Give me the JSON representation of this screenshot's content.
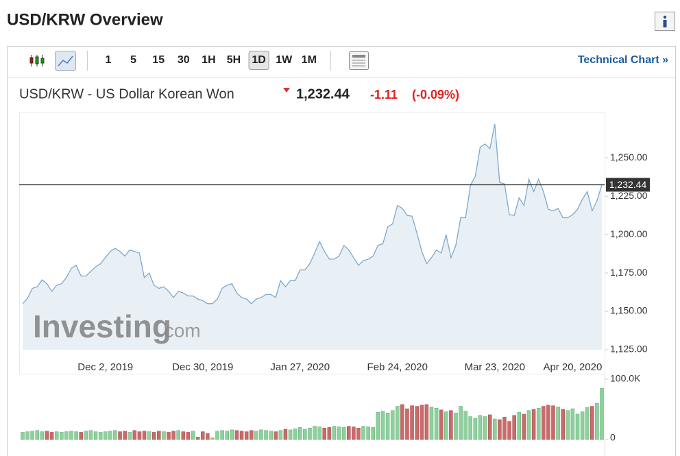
{
  "header": {
    "title": "USD/KRW Overview"
  },
  "toolbar": {
    "intervals": [
      {
        "label": "1",
        "active": false
      },
      {
        "label": "5",
        "active": false
      },
      {
        "label": "15",
        "active": false
      },
      {
        "label": "30",
        "active": false
      },
      {
        "label": "1H",
        "active": false
      },
      {
        "label": "5H",
        "active": false
      },
      {
        "label": "1D",
        "active": true
      },
      {
        "label": "1W",
        "active": false
      },
      {
        "label": "1M",
        "active": false
      }
    ],
    "link": "Technical Chart »"
  },
  "quote": {
    "name": "USD/KRW - US Dollar Korean Won",
    "price": "1,232.44",
    "change": "-1.11",
    "change_pct": "(-0.09%)"
  },
  "watermark": {
    "brand": "Investing",
    "suffix": ".com"
  },
  "chart_data": [
    {
      "type": "area",
      "color": "#7ea8cc",
      "fill": "#e4edf5",
      "categories": [
        null,
        null,
        null,
        null,
        null,
        null,
        null,
        null,
        null,
        null,
        null,
        null,
        null,
        null,
        null,
        null,
        null,
        "Dec 2, 2019",
        null,
        null,
        null,
        null,
        null,
        null,
        null,
        null,
        null,
        null,
        null,
        null,
        null,
        null,
        null,
        null,
        null,
        null,
        null,
        "Dec 30, 2019",
        null,
        null,
        null,
        null,
        null,
        null,
        null,
        null,
        null,
        null,
        null,
        null,
        null,
        null,
        null,
        null,
        null,
        null,
        null,
        "Jan 27, 2020",
        null,
        null,
        null,
        null,
        null,
        null,
        null,
        null,
        null,
        null,
        null,
        null,
        null,
        null,
        null,
        null,
        null,
        null,
        null,
        "Feb 24, 2020",
        null,
        null,
        null,
        null,
        null,
        null,
        null,
        null,
        null,
        null,
        null,
        null,
        null,
        null,
        null,
        null,
        null,
        null,
        null,
        "Mar 23, 2020",
        null,
        null,
        null,
        null,
        null,
        null,
        null,
        null,
        null,
        null,
        null,
        null,
        null,
        null,
        null,
        "Apr 20, 2020",
        null,
        null,
        null,
        null,
        null,
        null
      ],
      "values": [
        1155,
        1158.5,
        1165,
        1166,
        1170.5,
        1168,
        1163,
        1167,
        1168,
        1172,
        1178,
        1180,
        1173,
        1173,
        1176,
        1179,
        1181,
        1185,
        1189,
        1191,
        1189,
        1186,
        1190,
        1189,
        1188,
        1172,
        1175,
        1167,
        1165,
        1166,
        1163,
        1159,
        1163,
        1162,
        1160,
        1160,
        1158,
        1157,
        1155,
        1155,
        1158,
        1165,
        1167,
        1168,
        1162,
        1159,
        1158,
        1155,
        1158,
        1159,
        1161,
        1161,
        1159,
        1170,
        1166,
        1170,
        1170,
        1177,
        1177,
        1181,
        1188,
        1195.5,
        1189,
        1184,
        1184,
        1186,
        1193,
        1190,
        1185,
        1180,
        1183,
        1184,
        1186,
        1193,
        1194,
        1205,
        1207,
        1219,
        1217,
        1212.5,
        1212,
        1201,
        1189,
        1181,
        1185,
        1190,
        1188,
        1200,
        1185,
        1193,
        1211,
        1211,
        1232,
        1238,
        1257,
        1259,
        1256,
        1272,
        1234,
        1233,
        1213,
        1212.5,
        1224,
        1219,
        1236,
        1228,
        1236,
        1228,
        1216.5,
        1215.5,
        1217,
        1211,
        1211,
        1213,
        1216.5,
        1223,
        1228,
        1215.5,
        1222,
        1232.44
      ],
      "ylim": [
        1125,
        1280
      ],
      "yticks": [
        {
          "value": 1125,
          "label": "1,125.00"
        },
        {
          "value": 1150,
          "label": "1,150.00"
        },
        {
          "value": 1175,
          "label": "1,175.00"
        },
        {
          "value": 1200,
          "label": "1,200.00"
        },
        {
          "value": 1225,
          "label": "1,225.00"
        },
        {
          "value": 1250,
          "label": "1,250.00"
        }
      ],
      "last_value": {
        "value": 1232.44,
        "label": "1,232.44"
      }
    },
    {
      "type": "bar",
      "up_color": "#8fd19e",
      "down_color": "#c96b6b",
      "values": [
        12000,
        13000,
        14000,
        15000,
        13000,
        14000,
        12000,
        13000,
        12000,
        13000,
        14000,
        13000,
        12000,
        14000,
        15000,
        13000,
        12000,
        13000,
        14000,
        15000,
        13000,
        14000,
        12000,
        15000,
        13000,
        14000,
        13000,
        12000,
        14000,
        13000,
        12000,
        14000,
        15000,
        13000,
        12000,
        14000,
        4000,
        13000,
        10000,
        3000,
        14000,
        15000,
        14000,
        16000,
        15000,
        14000,
        13000,
        15000,
        14000,
        16000,
        15000,
        14000,
        13000,
        15000,
        17000,
        16000,
        18000,
        20000,
        17000,
        19000,
        22000,
        21000,
        19000,
        20000,
        22000,
        21000,
        20000,
        22000,
        21000,
        19000,
        22000,
        21000,
        20000,
        45000,
        47000,
        44000,
        48000,
        55000,
        58000,
        51000,
        56000,
        55000,
        57000,
        58000,
        54000,
        52000,
        49000,
        46000,
        48000,
        44000,
        55000,
        47000,
        38000,
        35000,
        40000,
        38000,
        41000,
        34000,
        33000,
        37000,
        30000,
        40000,
        45000,
        42000,
        48000,
        50000,
        52000,
        55000,
        57000,
        56000,
        54000,
        50000,
        48000,
        51000,
        42000,
        46000,
        53000,
        55000,
        60000,
        85000
      ],
      "ylim": [
        0,
        109000
      ],
      "yticks": [
        {
          "value": 100000,
          "label": "100.0K"
        },
        0
      ]
    }
  ]
}
